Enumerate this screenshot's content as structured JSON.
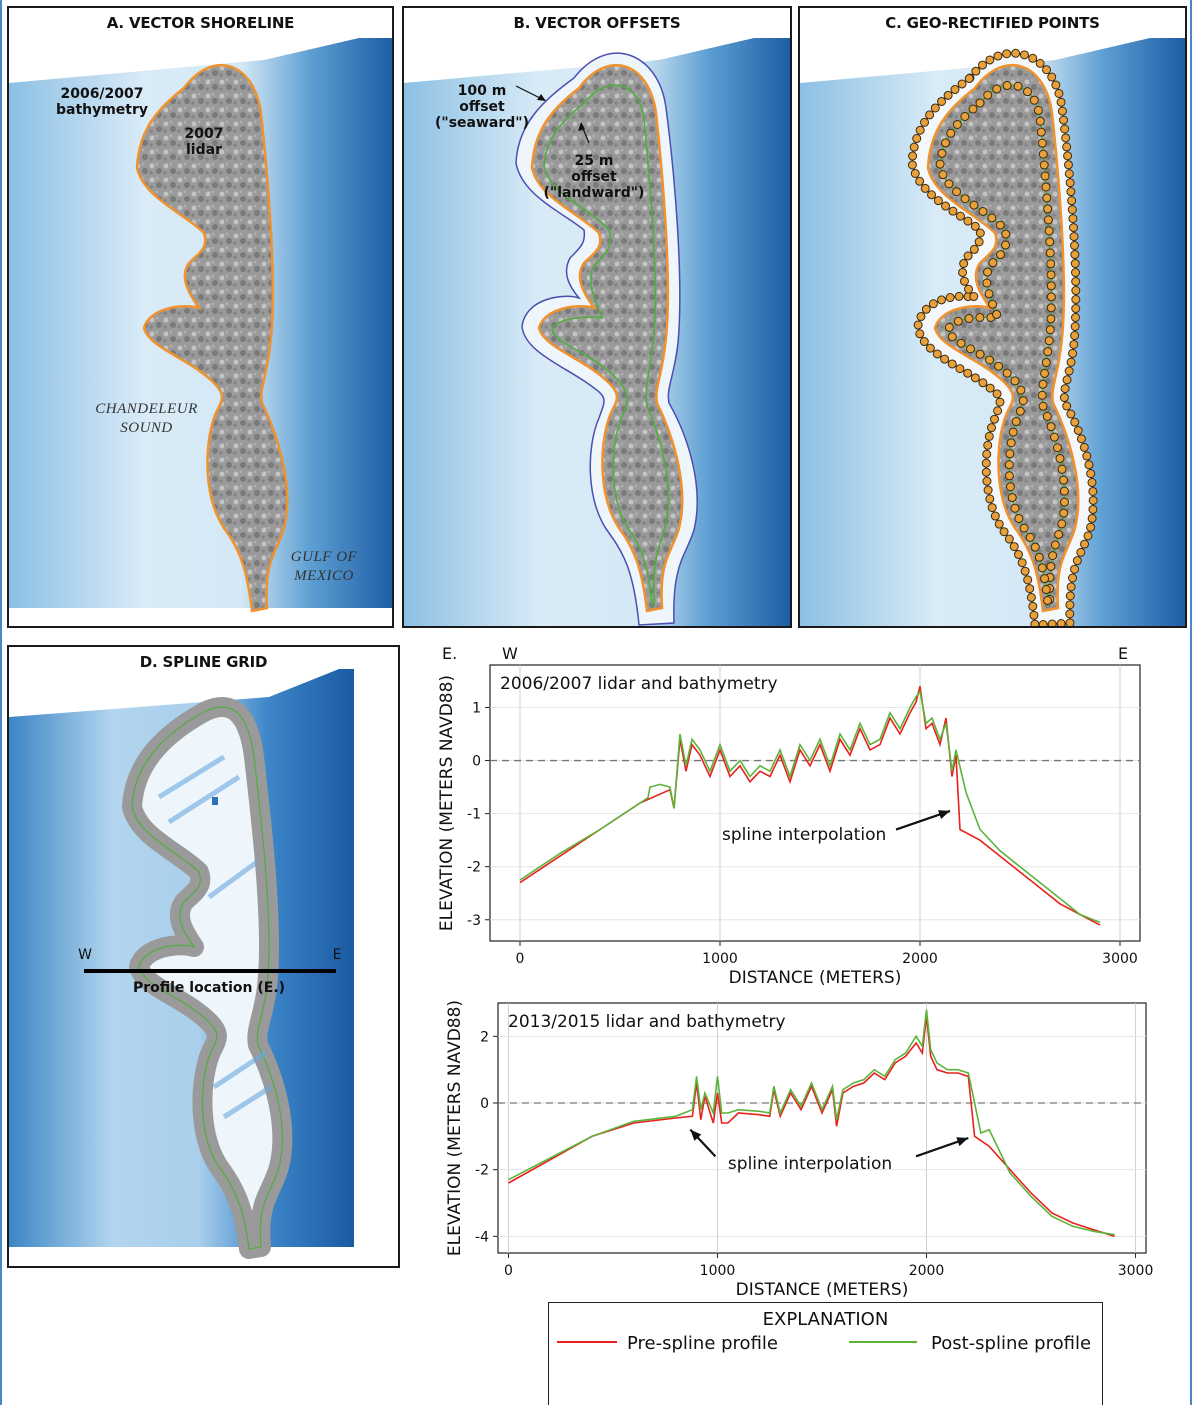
{
  "panels": {
    "a": {
      "title": "A. VECTOR SHORELINE",
      "label_bathy": "2006/2007\nbathymetry",
      "label_lidar": "2007\nlidar",
      "label_sound": "CHANDELEUR\nSOUND",
      "label_gulf": "GULF OF\nMEXICO"
    },
    "b": {
      "title": "B. VECTOR OFFSETS",
      "label_seaward": "100 m\noffset\n(\"seaward\")",
      "label_landward": "25 m\noffset\n(\"landward\")"
    },
    "c": {
      "title": "C. GEO-RECTIFIED POINTS"
    },
    "d": {
      "title": "D. SPLINE GRID",
      "label_w": "W",
      "label_e": "E",
      "profile_label": "Profile location (E.)"
    },
    "e": {
      "letter": "E.",
      "dir_w": "W",
      "dir_e": "E"
    }
  },
  "colors": {
    "pre": "#e8211d",
    "post": "#5cb33a",
    "shoreline": "#f0922e",
    "offset_seaward": "#4a4fb0",
    "offset_landward": "#4fae3d",
    "points": "#e8a03a",
    "deep_water": "#1f5ea8",
    "shallow_water": "#d8eaf6"
  },
  "chart_data": [
    {
      "type": "line",
      "title": "2006/2007 lidar and bathymetry",
      "xlabel": "DISTANCE (METERS)",
      "ylabel": "ELEVATION (METERS NAVD88)",
      "xlim": [
        -150,
        3100
      ],
      "ylim": [
        -3.4,
        1.8
      ],
      "xticks": [
        0,
        1000,
        2000,
        3000
      ],
      "yticks": [
        1,
        0,
        -1,
        -2,
        -3
      ],
      "grid": true,
      "reference_line": 0,
      "annotation": "spline interpolation",
      "series": [
        {
          "name": "Pre-spline profile",
          "x": [
            0,
            200,
            400,
            600,
            750,
            770,
            800,
            830,
            860,
            900,
            950,
            1000,
            1050,
            1100,
            1150,
            1200,
            1250,
            1300,
            1350,
            1400,
            1450,
            1500,
            1550,
            1600,
            1650,
            1700,
            1750,
            1800,
            1850,
            1900,
            1950,
            1980,
            2000,
            2030,
            2060,
            2100,
            2130,
            2160,
            2180,
            2200,
            2300,
            2400,
            2500,
            2600,
            2700,
            2800,
            2900
          ],
          "y": [
            -2.3,
            -1.8,
            -1.3,
            -0.8,
            -0.55,
            -0.9,
            0.4,
            -0.2,
            0.3,
            0.1,
            -0.3,
            0.2,
            -0.3,
            -0.1,
            -0.4,
            -0.2,
            -0.3,
            0.1,
            -0.4,
            0.2,
            -0.1,
            0.3,
            -0.2,
            0.4,
            0.1,
            0.6,
            0.2,
            0.3,
            0.8,
            0.5,
            0.9,
            1.1,
            1.4,
            0.6,
            0.7,
            0.3,
            0.8,
            -0.3,
            0.1,
            -1.3,
            -1.5,
            -1.8,
            -2.1,
            -2.4,
            -2.7,
            -2.9,
            -3.1
          ]
        },
        {
          "name": "Post-spline profile",
          "x": [
            0,
            200,
            400,
            600,
            640,
            650,
            700,
            750,
            770,
            800,
            830,
            860,
            900,
            950,
            1000,
            1050,
            1100,
            1150,
            1200,
            1250,
            1300,
            1350,
            1400,
            1450,
            1500,
            1550,
            1600,
            1650,
            1700,
            1750,
            1800,
            1850,
            1900,
            1950,
            1980,
            2000,
            2030,
            2060,
            2100,
            2130,
            2160,
            2180,
            2230,
            2300,
            2400,
            2500,
            2600,
            2700,
            2800,
            2900
          ],
          "y": [
            -2.25,
            -1.75,
            -1.3,
            -0.8,
            -0.7,
            -0.5,
            -0.45,
            -0.5,
            -0.9,
            0.5,
            -0.1,
            0.4,
            0.2,
            -0.2,
            0.3,
            -0.2,
            0.0,
            -0.3,
            -0.1,
            -0.2,
            0.2,
            -0.3,
            0.3,
            0.0,
            0.4,
            -0.1,
            0.5,
            0.2,
            0.7,
            0.3,
            0.4,
            0.9,
            0.6,
            1.0,
            1.2,
            1.3,
            0.7,
            0.8,
            0.4,
            0.7,
            -0.2,
            0.2,
            -0.6,
            -1.3,
            -1.7,
            -2.0,
            -2.3,
            -2.6,
            -2.9,
            -3.05
          ]
        }
      ]
    },
    {
      "type": "line",
      "title": "2013/2015 lidar and bathymetry",
      "xlabel": "DISTANCE (METERS)",
      "ylabel": "ELEVATION (METERS NAVD88)",
      "xlim": [
        -50,
        3050
      ],
      "ylim": [
        -4.5,
        3.0
      ],
      "xticks": [
        0,
        1000,
        2000,
        3000
      ],
      "yticks": [
        2,
        0,
        -2,
        -4
      ],
      "grid": true,
      "reference_line": 0,
      "annotation": "spline interpolation",
      "series": [
        {
          "name": "Pre-spline profile",
          "x": [
            0,
            200,
            400,
            600,
            800,
            880,
            900,
            920,
            940,
            980,
            1000,
            1020,
            1050,
            1100,
            1200,
            1250,
            1270,
            1300,
            1350,
            1400,
            1450,
            1500,
            1550,
            1570,
            1600,
            1650,
            1700,
            1750,
            1800,
            1850,
            1900,
            1950,
            1980,
            2000,
            2020,
            2050,
            2100,
            2150,
            2200,
            2230,
            2300,
            2400,
            2500,
            2600,
            2700,
            2800,
            2900
          ],
          "y": [
            -2.4,
            -1.7,
            -1.0,
            -0.6,
            -0.45,
            -0.4,
            0.6,
            -0.5,
            0.2,
            -0.6,
            0.3,
            -0.6,
            -0.6,
            -0.3,
            -0.35,
            -0.4,
            0.4,
            -0.4,
            0.3,
            -0.2,
            0.5,
            -0.3,
            0.4,
            -0.7,
            0.3,
            0.5,
            0.6,
            0.9,
            0.7,
            1.2,
            1.4,
            1.8,
            1.5,
            2.6,
            1.4,
            1.0,
            0.9,
            0.9,
            0.8,
            -1.0,
            -1.3,
            -2.0,
            -2.7,
            -3.3,
            -3.6,
            -3.8,
            -4.0
          ]
        },
        {
          "name": "Post-spline profile",
          "x": [
            0,
            200,
            400,
            600,
            800,
            880,
            900,
            920,
            940,
            980,
            1000,
            1020,
            1050,
            1100,
            1200,
            1250,
            1270,
            1300,
            1350,
            1400,
            1450,
            1500,
            1550,
            1570,
            1600,
            1650,
            1700,
            1750,
            1800,
            1850,
            1900,
            1950,
            1980,
            2000,
            2020,
            2050,
            2100,
            2150,
            2200,
            2230,
            2260,
            2300,
            2400,
            2500,
            2600,
            2700,
            2800,
            2900
          ],
          "y": [
            -2.3,
            -1.65,
            -1.0,
            -0.55,
            -0.4,
            -0.2,
            0.8,
            -0.2,
            0.3,
            -0.3,
            0.8,
            -0.3,
            -0.3,
            -0.2,
            -0.25,
            -0.3,
            0.5,
            -0.3,
            0.4,
            -0.1,
            0.6,
            -0.2,
            0.5,
            -0.5,
            0.4,
            0.6,
            0.7,
            1.0,
            0.8,
            1.3,
            1.5,
            2.0,
            1.7,
            2.8,
            1.6,
            1.2,
            1.0,
            1.0,
            0.9,
            0.0,
            -0.9,
            -0.8,
            -2.1,
            -2.8,
            -3.4,
            -3.7,
            -3.85,
            -3.95
          ]
        }
      ]
    }
  ],
  "legend": {
    "title": "EXPLANATION",
    "pre_label": "Pre-spline profile",
    "post_label": "Post-spline profile"
  }
}
